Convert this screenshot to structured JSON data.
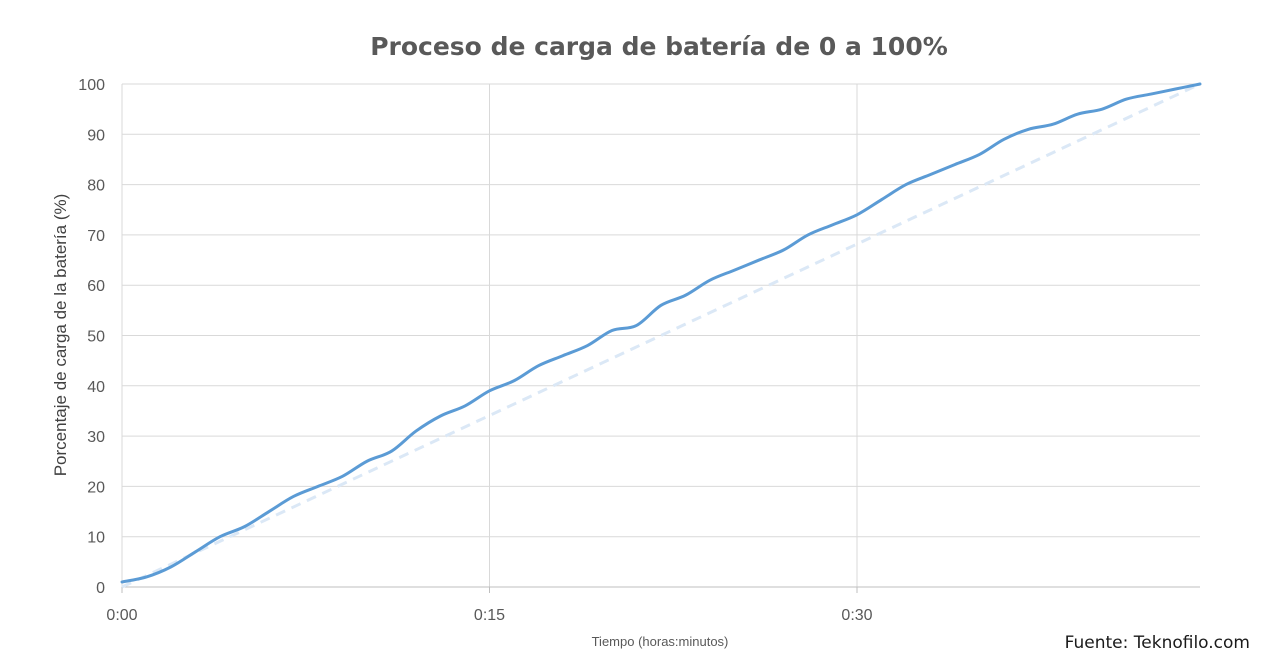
{
  "chart_data": {
    "type": "line",
    "title": "Proceso de carga de batería de 0 a 100%",
    "xlabel": "Tiempo (horas:minutos)",
    "ylabel": "Porcentaje de carga de la batería (%)",
    "source": "Fuente: Teknofilo.com",
    "x_ticks": [
      {
        "value": 0,
        "label": "0:00"
      },
      {
        "value": 15,
        "label": "0:15"
      },
      {
        "value": 30,
        "label": "0:30"
      }
    ],
    "y_ticks": [
      0,
      10,
      20,
      30,
      40,
      50,
      60,
      70,
      80,
      90,
      100
    ],
    "xlim": [
      0,
      44
    ],
    "ylim": [
      0,
      100
    ],
    "grid": true,
    "series": [
      {
        "style": "solid",
        "color": "#5b9bd5",
        "x": [
          0,
          1,
          2,
          3,
          4,
          5,
          6,
          7,
          8,
          9,
          10,
          11,
          12,
          13,
          14,
          15,
          16,
          17,
          18,
          19,
          20,
          21,
          22,
          23,
          24,
          25,
          26,
          27,
          28,
          29,
          30,
          31,
          32,
          33,
          34,
          35,
          36,
          37,
          38,
          39,
          40,
          41,
          42,
          43,
          44
        ],
        "y": [
          1,
          2,
          4,
          7,
          10,
          12,
          15,
          18,
          20,
          22,
          25,
          27,
          31,
          34,
          36,
          39,
          41,
          44,
          46,
          48,
          51,
          52,
          56,
          58,
          61,
          63,
          65,
          67,
          70,
          72,
          74,
          77,
          80,
          82,
          84,
          86,
          89,
          91,
          92,
          94,
          95,
          97,
          98,
          99,
          100
        ]
      },
      {
        "style": "dashed",
        "color": "#dbe8f6",
        "x": [
          0,
          44
        ],
        "y": [
          0,
          100
        ]
      }
    ]
  }
}
